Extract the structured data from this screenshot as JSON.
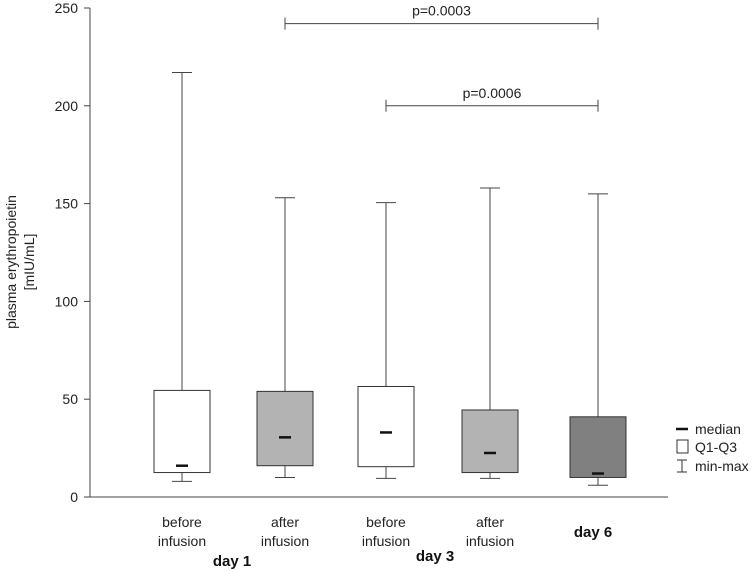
{
  "chart_data": {
    "type": "box",
    "ylabel_line1": "plasma erythropoietin",
    "ylabel_line2": "[mIU/mL]",
    "ylim": [
      0,
      250
    ],
    "yticks": [
      "0",
      "50",
      "100",
      "150",
      "200",
      "250"
    ],
    "ytick_values": [
      0,
      50,
      100,
      150,
      200,
      250
    ],
    "grid": false,
    "boxes": [
      {
        "label_line1": "before",
        "label_line2": "infusion",
        "min": 8,
        "q1": 12.5,
        "median": 16,
        "q3": 54.5,
        "max": 217,
        "color": "#ffffff"
      },
      {
        "label_line1": "after",
        "label_line2": "infusion",
        "min": 10,
        "q1": 16,
        "median": 30.5,
        "q3": 54,
        "max": 153,
        "color": "#b3b3b3"
      },
      {
        "label_line1": "before",
        "label_line2": "infusion",
        "min": 9.5,
        "q1": 15.5,
        "median": 33,
        "q3": 56.5,
        "max": 150.5,
        "color": "#ffffff"
      },
      {
        "label_line1": "after",
        "label_line2": "infusion",
        "min": 9.5,
        "q1": 12.5,
        "median": 22.5,
        "q3": 44.5,
        "max": 158,
        "color": "#b3b3b3"
      },
      {
        "label_line1": "",
        "label_line2": "",
        "min": 6,
        "q1": 10,
        "median": 12,
        "q3": 41,
        "max": 155,
        "color": "#808080"
      }
    ],
    "groups": [
      "day 1",
      "day 3",
      "day 6"
    ],
    "brackets": [
      {
        "text": "p=0.0003",
        "from_box": 1,
        "to_box": 4,
        "y": 242
      },
      {
        "text": "p=0.0006",
        "from_box": 2,
        "to_box": 4,
        "y": 200
      }
    ],
    "legend": {
      "median": "median",
      "box": "Q1-Q3",
      "whisker": "min-max",
      "placement": "right"
    }
  }
}
